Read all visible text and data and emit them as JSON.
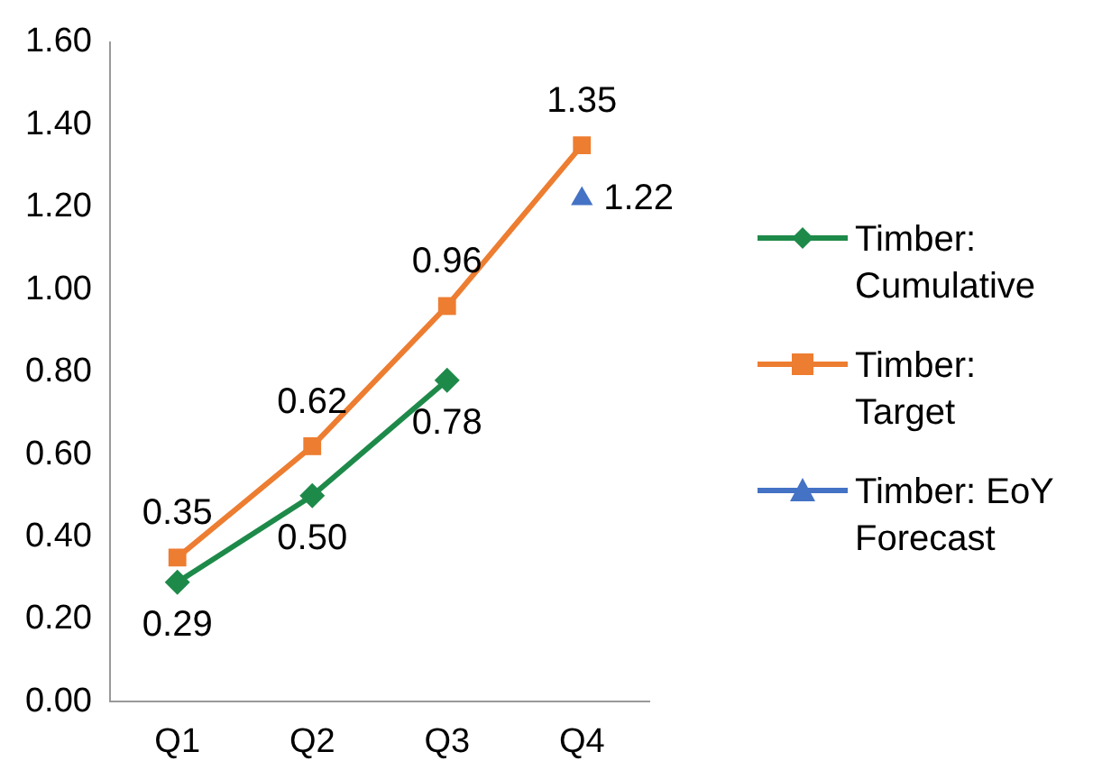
{
  "chart_data": {
    "type": "line",
    "categories": [
      "Q1",
      "Q2",
      "Q3",
      "Q4"
    ],
    "series": [
      {
        "name": "Timber: Cumulative",
        "color": "#1e8a4a",
        "marker": "diamond",
        "values": [
          0.29,
          0.5,
          0.78,
          null
        ],
        "value_labels": [
          "0.29",
          "0.50",
          "0.78",
          null
        ]
      },
      {
        "name": "Timber: Target",
        "color": "#ed7d31",
        "marker": "square",
        "values": [
          0.35,
          0.62,
          0.96,
          1.35
        ],
        "value_labels": [
          "0.35",
          "0.62",
          "0.96",
          "1.35"
        ]
      },
      {
        "name": "Timber: EoY Forecast",
        "color": "#4472c4",
        "marker": "triangle",
        "values": [
          null,
          null,
          null,
          1.22
        ],
        "value_labels": [
          null,
          null,
          null,
          "1.22"
        ]
      }
    ],
    "ylim": [
      0,
      1.6
    ],
    "yticks": [
      {
        "value": 0,
        "label": "0.00"
      },
      {
        "value": 0.2,
        "label": "0.20"
      },
      {
        "value": 0.4,
        "label": "0.40"
      },
      {
        "value": 0.6,
        "label": "0.60"
      },
      {
        "value": 0.8,
        "label": "0.80"
      },
      {
        "value": 1.0,
        "label": "1.00"
      },
      {
        "value": 1.2,
        "label": "1.20"
      },
      {
        "value": 1.4,
        "label": "1.40"
      },
      {
        "value": 1.6,
        "label": "1.60"
      }
    ],
    "legend": "right"
  }
}
